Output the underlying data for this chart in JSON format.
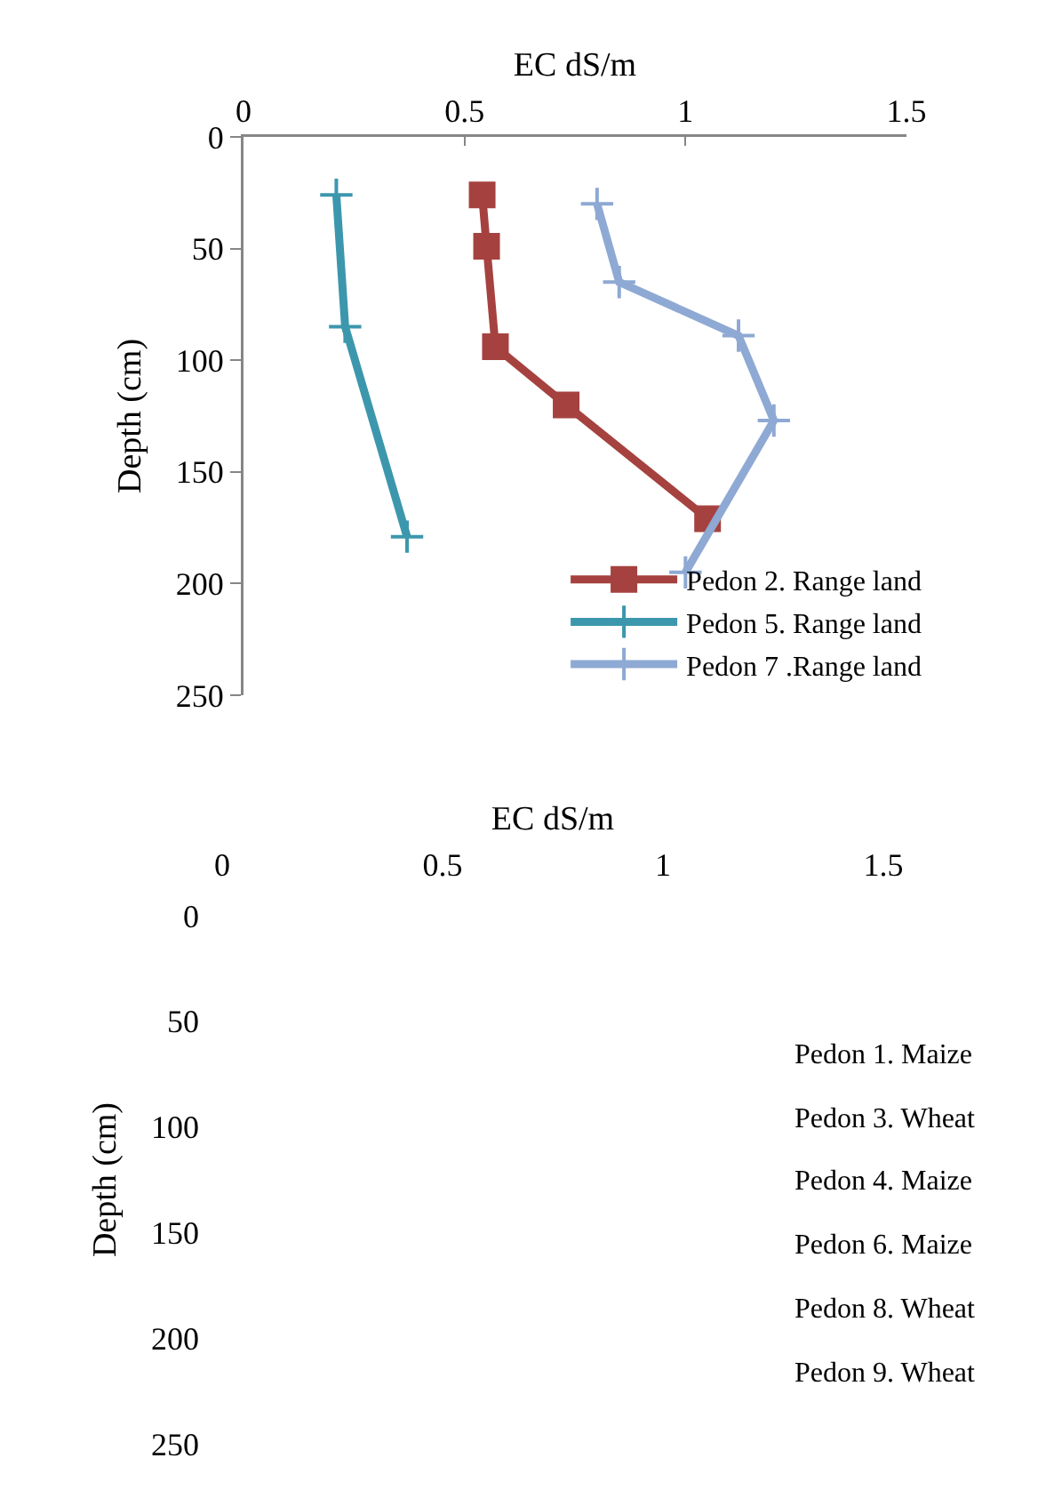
{
  "chart_data": [
    {
      "type": "line",
      "xlabel": "EC dS/m",
      "ylabel": "Depth (cm)",
      "xlim": [
        0,
        1.5
      ],
      "xticks": [
        0,
        0.5,
        1,
        1.5
      ],
      "ylim": [
        250,
        0
      ],
      "yticks": [
        0,
        50,
        100,
        150,
        200,
        250
      ],
      "legend": "bottom right",
      "grid": false,
      "series": [
        {
          "name": "Pedon 2. Range land",
          "color": "#a5423f",
          "marker": "square",
          "x": [
            0.54,
            0.55,
            0.57,
            0.73,
            1.05
          ],
          "values": [
            26,
            49,
            94,
            120,
            171
          ]
        },
        {
          "name": "Pedon 5. Range land",
          "color": "#3c97ad",
          "marker": "cross",
          "x": [
            0.21,
            0.23,
            0.37
          ],
          "values": [
            26,
            85,
            179
          ]
        },
        {
          "name": "Pedon 7 .Range land",
          "color": "#8ea9d3",
          "marker": "cross",
          "x": [
            0.8,
            0.85,
            1.12,
            1.2,
            1.0
          ],
          "values": [
            30,
            65,
            89,
            127,
            195
          ]
        }
      ]
    },
    {
      "type": "line",
      "xlabel": "EC dS/m",
      "ylabel": "Depth (cm)",
      "xlim": [
        0,
        1.5
      ],
      "xticks": [
        0,
        0.5,
        1,
        1.5
      ],
      "ylim": [
        250,
        0
      ],
      "yticks": [
        0,
        50,
        100,
        150,
        200,
        250
      ],
      "grid": false,
      "annotations": [
        "Pedon 1. Maize",
        "Pedon 3. Wheat",
        "Pedon 4. Maize",
        "Pedon 6. Maize",
        "Pedon 8. Wheat",
        "Pedon 9. Wheat"
      ]
    }
  ]
}
